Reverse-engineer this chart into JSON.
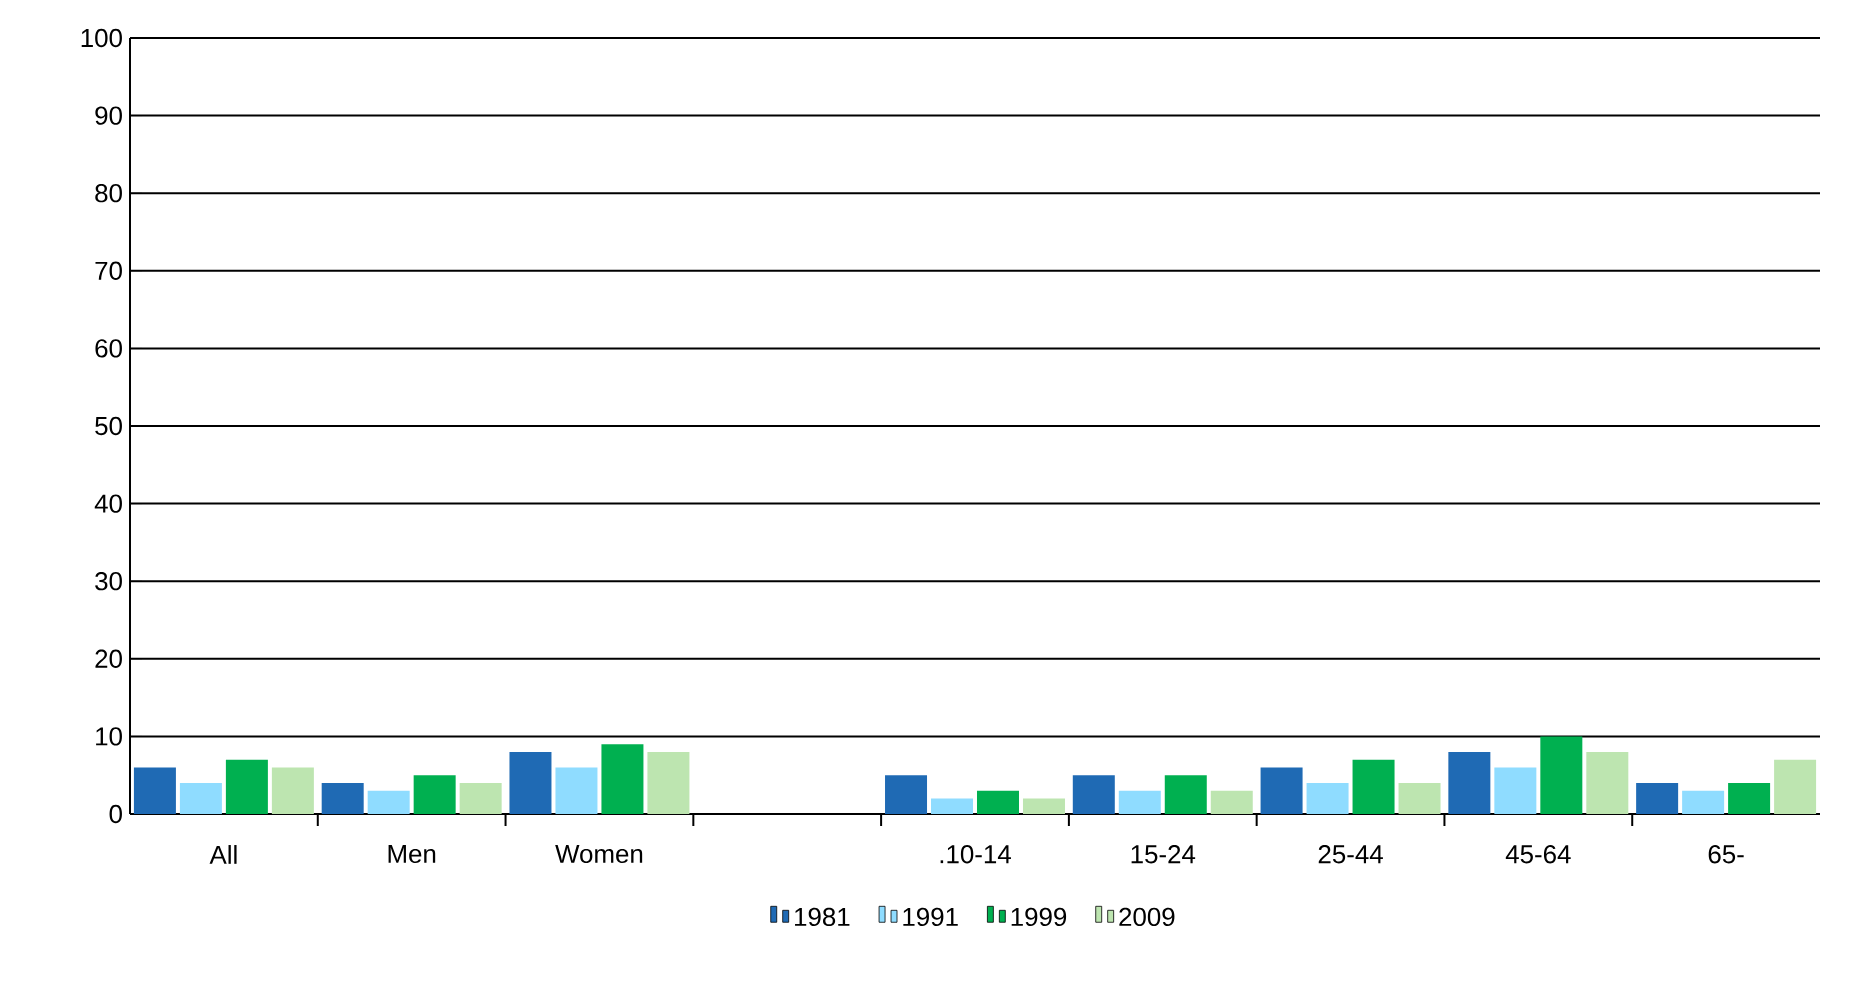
{
  "chart_data": {
    "type": "bar",
    "categories": [
      "All",
      "Men",
      "Women",
      null,
      ".10-14",
      "15-24",
      "25-44",
      "45-64",
      "65-"
    ],
    "series": [
      {
        "name": "1981",
        "color": "#1f6ab4",
        "values": [
          6,
          4,
          8,
          null,
          5,
          5,
          6,
          8,
          4
        ]
      },
      {
        "name": "1991",
        "color": "#8fdcff",
        "values": [
          4,
          3,
          6,
          null,
          2,
          3,
          4,
          6,
          3
        ]
      },
      {
        "name": "1999",
        "color": "#00b050",
        "values": [
          7,
          5,
          9,
          null,
          3,
          5,
          7,
          10,
          4
        ]
      },
      {
        "name": "2009",
        "color": "#bde5b0",
        "values": [
          6,
          4,
          8,
          null,
          2,
          3,
          4,
          8,
          7
        ]
      }
    ],
    "ylim": [
      0,
      100
    ],
    "yticks": [
      0,
      10,
      20,
      30,
      40,
      50,
      60,
      70,
      80,
      90,
      100
    ],
    "grid": "y",
    "legend": "bottom"
  }
}
